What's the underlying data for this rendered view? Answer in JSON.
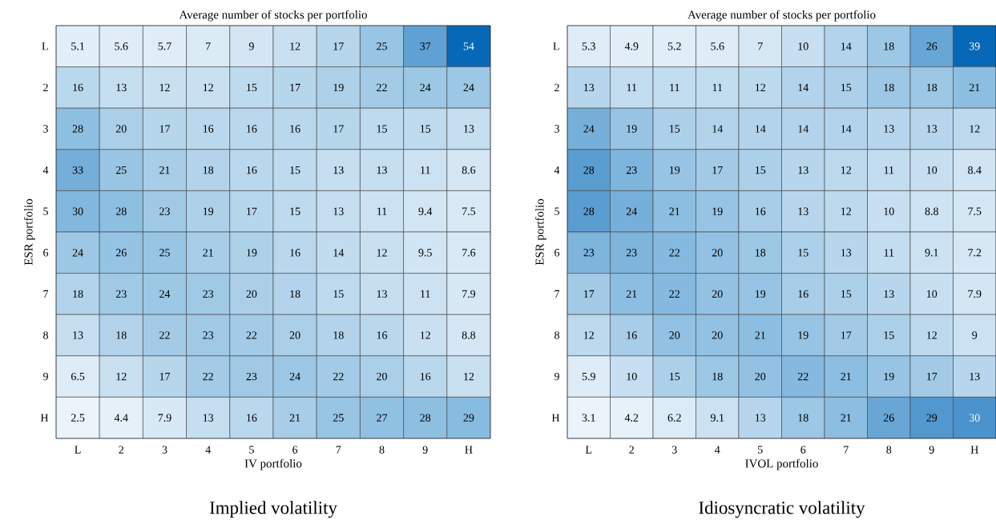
{
  "chart_data": [
    {
      "type": "heatmap",
      "title": "Average number of stocks per portfolio",
      "xlabel": "IV portfolio",
      "ylabel": "ESR portfolio",
      "annotations": [
        "Implied volatility"
      ],
      "data_labels": true,
      "categories": [
        "L",
        "2",
        "3",
        "4",
        "5",
        "6",
        "7",
        "8",
        "9",
        "H"
      ],
      "y_categories": [
        "L",
        "2",
        "3",
        "4",
        "5",
        "6",
        "7",
        "8",
        "9",
        "H"
      ],
      "cells": [
        [
          5.1,
          5.6,
          5.7,
          7,
          9,
          12,
          17,
          25,
          37,
          54
        ],
        [
          16,
          13,
          12,
          12,
          15,
          17,
          19,
          22,
          24,
          24
        ],
        [
          28,
          20,
          17,
          16,
          16,
          16,
          17,
          15,
          15,
          13
        ],
        [
          33,
          25,
          21,
          18,
          16,
          15,
          13,
          13,
          11,
          8.6
        ],
        [
          30,
          28,
          23,
          19,
          17,
          15,
          13,
          11,
          9.4,
          7.5
        ],
        [
          24,
          26,
          25,
          21,
          19,
          16,
          14,
          12,
          9.5,
          7.6
        ],
        [
          18,
          23,
          24,
          23,
          20,
          18,
          15,
          13,
          11,
          7.9
        ],
        [
          13,
          18,
          22,
          23,
          22,
          20,
          18,
          16,
          12,
          8.8
        ],
        [
          6.5,
          12,
          17,
          22,
          23,
          24,
          22,
          20,
          16,
          12
        ],
        [
          2.5,
          4.4,
          7.9,
          13,
          16,
          21,
          25,
          27,
          28,
          29
        ]
      ]
    },
    {
      "type": "heatmap",
      "title": "Average number of stocks per portfolio",
      "xlabel": "IVOL portfolio",
      "ylabel": "ESR portfolio",
      "annotations": [
        "Idiosyncratic volatility"
      ],
      "data_labels": true,
      "categories": [
        "L",
        "2",
        "3",
        "4",
        "5",
        "6",
        "7",
        "8",
        "9",
        "H"
      ],
      "y_categories": [
        "L",
        "2",
        "3",
        "4",
        "5",
        "6",
        "7",
        "8",
        "9",
        "H"
      ],
      "cells": [
        [
          5.3,
          4.9,
          5.2,
          5.6,
          7,
          10,
          14,
          18,
          26,
          39
        ],
        [
          13,
          11,
          11,
          11,
          12,
          14,
          15,
          18,
          18,
          21
        ],
        [
          24,
          19,
          15,
          14,
          14,
          14,
          14,
          13,
          13,
          12
        ],
        [
          28,
          23,
          19,
          17,
          15,
          13,
          12,
          11,
          10,
          8.4
        ],
        [
          28,
          24,
          21,
          19,
          16,
          13,
          12,
          10,
          8.8,
          7.5
        ],
        [
          23,
          23,
          22,
          20,
          18,
          15,
          13,
          11,
          9.1,
          7.2
        ],
        [
          17,
          21,
          22,
          20,
          19,
          16,
          15,
          13,
          10,
          7.9
        ],
        [
          12,
          16,
          20,
          20,
          21,
          19,
          17,
          15,
          12,
          9
        ],
        [
          5.9,
          10,
          15,
          18,
          20,
          22,
          21,
          19,
          17,
          13
        ],
        [
          3.1,
          4.2,
          6.2,
          9.1,
          13,
          18,
          21,
          26,
          29,
          30
        ]
      ]
    }
  ]
}
